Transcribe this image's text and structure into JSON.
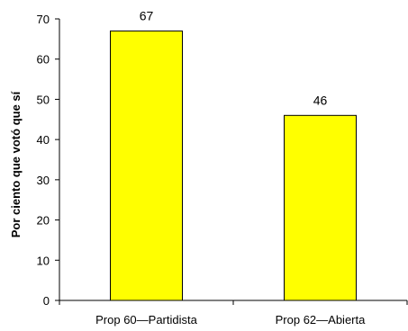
{
  "chart_data": {
    "type": "bar",
    "categories": [
      "Prop 60—Partidista",
      "Prop 62—Abierta"
    ],
    "values": [
      67,
      46
    ],
    "data_labels": [
      "67",
      "46"
    ],
    "title": "",
    "xlabel": "",
    "ylabel": "Por ciento que votó que sí",
    "ylim": [
      0,
      70
    ],
    "yticks": [
      0,
      10,
      20,
      30,
      40,
      50,
      60,
      70
    ],
    "grid": false,
    "legend": "none",
    "bar_color": "#FFFF00",
    "bar_edge_color": "#000000"
  }
}
